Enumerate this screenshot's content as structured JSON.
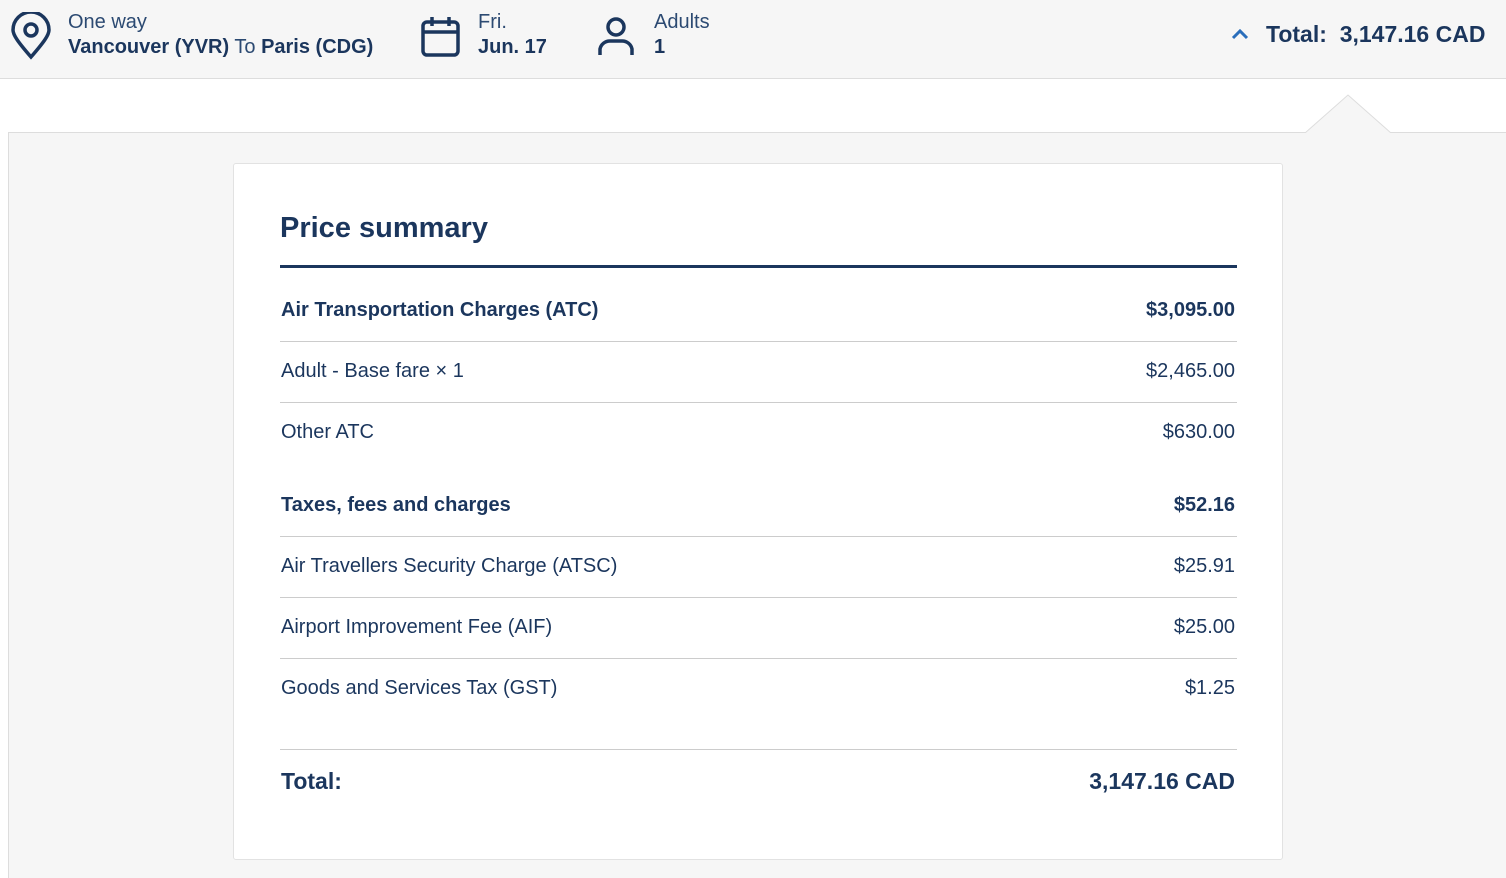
{
  "header": {
    "trip_type": "One way",
    "origin": "Vancouver (YVR)",
    "connector": "To",
    "destination": "Paris (CDG)",
    "day": "Fri.",
    "date": "Jun. 17",
    "passenger_label": "Adults",
    "passenger_count": "1",
    "total_label": "Total:",
    "total_value": "3,147.16 CAD"
  },
  "summary": {
    "title": "Price summary",
    "sections": [
      {
        "label": "Air Transportation Charges (ATC)",
        "amount": "$3,095.00",
        "items": [
          {
            "label": "Adult - Base fare × 1",
            "amount": "$2,465.00"
          },
          {
            "label": "Other ATC",
            "amount": "$630.00"
          }
        ]
      },
      {
        "label": "Taxes, fees and charges",
        "amount": "$52.16",
        "items": [
          {
            "label": "Air Travellers Security Charge (ATSC)",
            "amount": "$25.91"
          },
          {
            "label": "Airport Improvement Fee (AIF)",
            "amount": "$25.00"
          },
          {
            "label": "Goods and Services Tax (GST)",
            "amount": "$1.25"
          }
        ]
      }
    ],
    "total_label": "Total:",
    "total_value": "3,147.16 CAD"
  }
}
